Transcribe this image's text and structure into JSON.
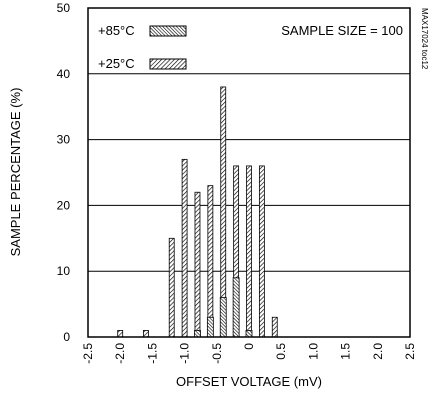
{
  "chart_data": {
    "type": "bar",
    "xlabel": "OFFSET VOLTAGE (mV)",
    "ylabel": "SAMPLE PERCENTAGE (%)",
    "xlim": [
      -2.5,
      2.5
    ],
    "ylim": [
      0,
      50
    ],
    "x_ticks": [
      "-2.5",
      "-2.0",
      "-1.5",
      "-1.0",
      "-0.5",
      "0",
      "0.5",
      "1.0",
      "1.5",
      "2.0",
      "2.5"
    ],
    "y_ticks": [
      "0",
      "10",
      "20",
      "30",
      "40",
      "50"
    ],
    "grid_y": true,
    "legend_position": "top-left",
    "annotation": "SAMPLE SIZE = 100",
    "side_label": "MAX17024 toc12",
    "series": [
      {
        "name": "+85°C",
        "pattern": "dense hatch",
        "x": [
          -0.8,
          -0.6,
          -0.4,
          -0.2,
          0.0
        ],
        "values": [
          1,
          3,
          6,
          9,
          1
        ]
      },
      {
        "name": "+25°C",
        "pattern": "hatch",
        "x": [
          -2.0,
          -1.6,
          -1.2,
          -1.0,
          -0.8,
          -0.6,
          -0.4,
          -0.2,
          0.0,
          0.2,
          0.4
        ],
        "values": [
          1,
          1,
          15,
          27,
          22,
          23,
          38,
          26,
          26,
          26,
          3
        ]
      }
    ]
  }
}
